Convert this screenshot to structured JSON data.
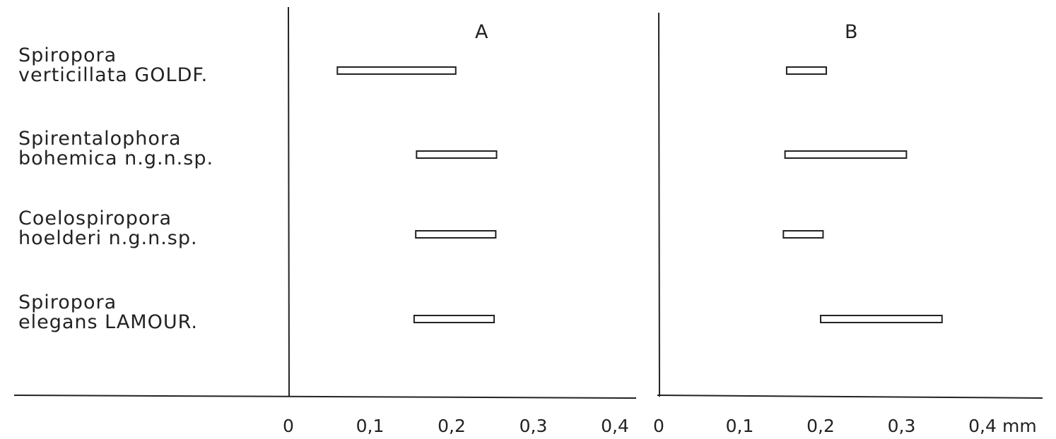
{
  "chart_data": [
    {
      "type": "bar",
      "orientation": "horizontal-range",
      "title": "A",
      "unit": "",
      "x_ticks": [
        "0",
        "0,1",
        "0,2",
        "0,3",
        "0,4"
      ],
      "xlim": [
        0,
        0.4
      ],
      "categories": [
        [
          "Spiropora",
          "verticillata GOLDF."
        ],
        [
          "Spirentalophora",
          "bohemica n.g.n.sp."
        ],
        [
          "Coelospiropora",
          "hoelderi n.g.n.sp."
        ],
        [
          "Spiropora",
          "elegans LAMOUR."
        ]
      ],
      "ranges": [
        [
          0.06,
          0.205
        ],
        [
          0.157,
          0.255
        ],
        [
          0.156,
          0.254
        ],
        [
          0.154,
          0.252
        ]
      ]
    },
    {
      "type": "bar",
      "orientation": "horizontal-range",
      "title": "B",
      "unit": "mm",
      "x_ticks": [
        "0",
        "0,1",
        "0,2",
        "0,3",
        "0,4"
      ],
      "xlim": [
        0,
        0.4
      ],
      "categories": [
        [
          "Spiropora",
          "verticillata GOLDF."
        ],
        [
          "Spirentalophora",
          "bohemica n.g.n.sp."
        ],
        [
          "Coelospiropora",
          "hoelderi n.g.n.sp."
        ],
        [
          "Spiropora",
          "elegans LAMOUR."
        ]
      ],
      "ranges": [
        [
          0.158,
          0.207
        ],
        [
          0.156,
          0.306
        ],
        [
          0.154,
          0.203
        ],
        [
          0.2,
          0.35
        ]
      ]
    }
  ]
}
